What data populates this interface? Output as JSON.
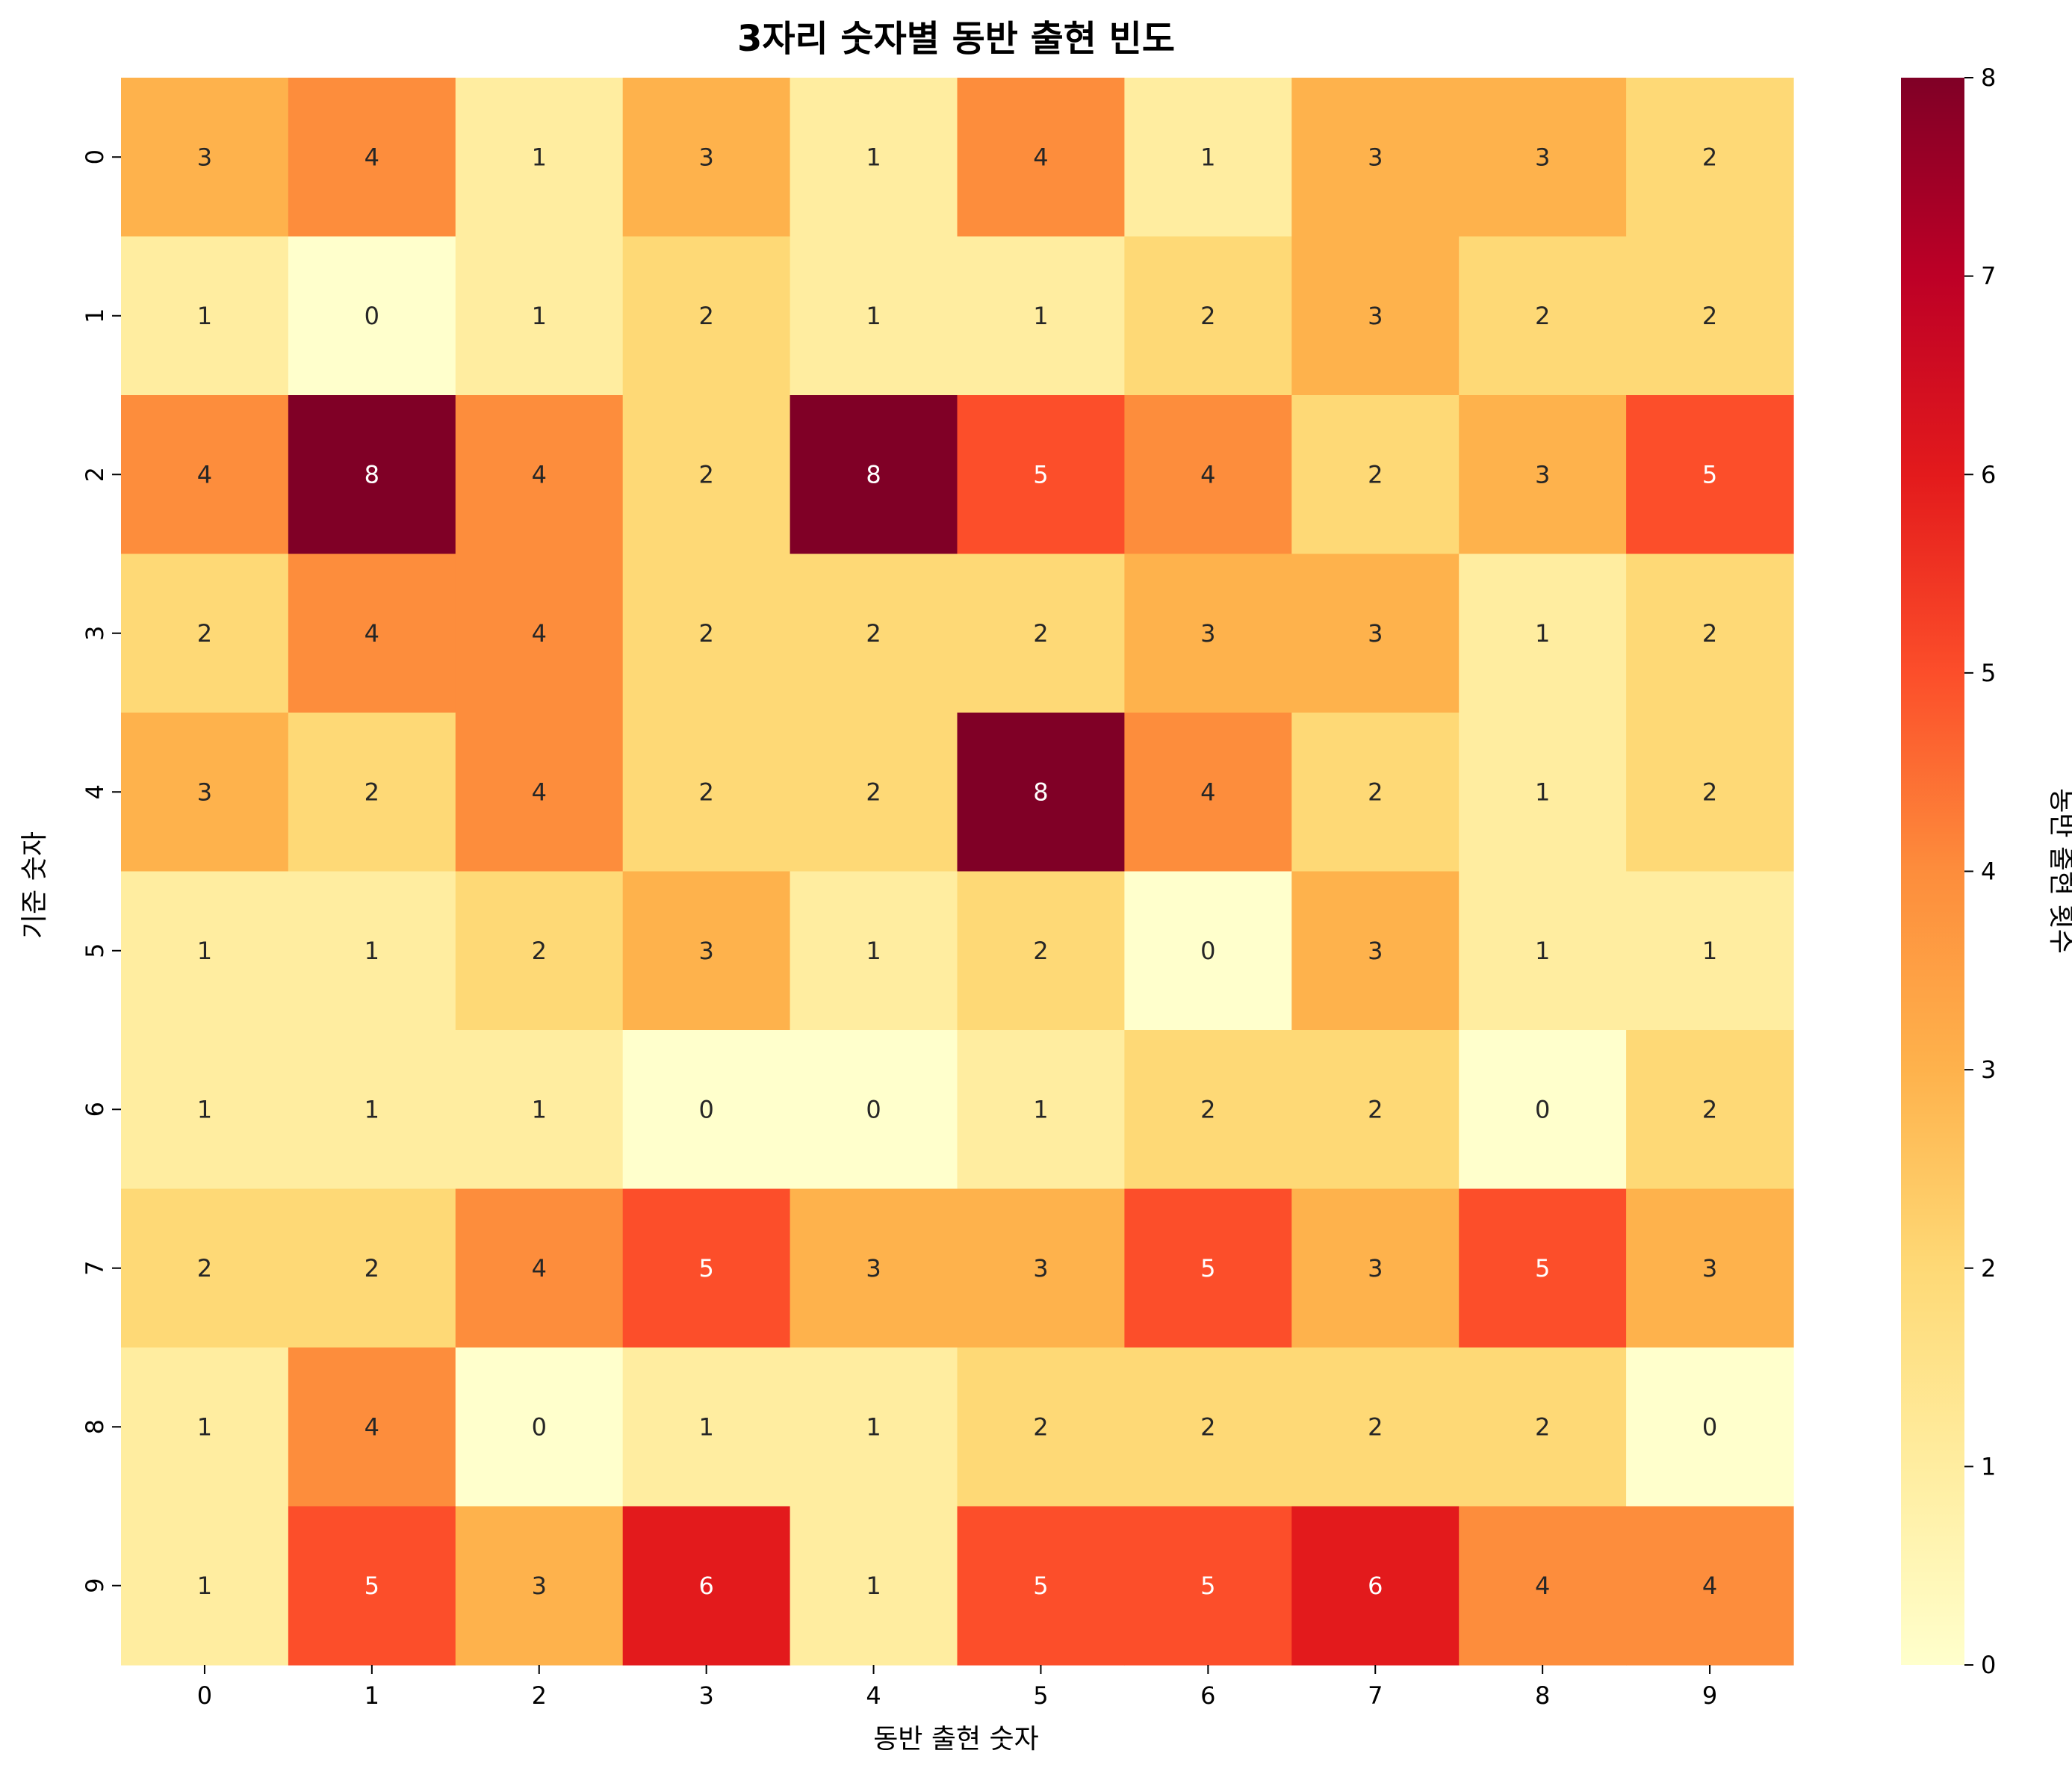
{
  "chart_data": {
    "type": "heatmap",
    "title": "3자리 숫자별 동반 출현 빈도",
    "xlabel": "동반 출현 숫자",
    "ylabel": "기준 숫자",
    "x_categories": [
      "0",
      "1",
      "2",
      "3",
      "4",
      "5",
      "6",
      "7",
      "8",
      "9"
    ],
    "y_categories": [
      "0",
      "1",
      "2",
      "3",
      "4",
      "5",
      "6",
      "7",
      "8",
      "9"
    ],
    "values": [
      [
        3,
        4,
        1,
        3,
        1,
        4,
        1,
        3,
        3,
        2
      ],
      [
        1,
        0,
        1,
        2,
        1,
        1,
        2,
        3,
        2,
        2
      ],
      [
        4,
        8,
        4,
        2,
        8,
        5,
        4,
        2,
        3,
        5
      ],
      [
        2,
        4,
        4,
        2,
        2,
        2,
        3,
        3,
        1,
        2
      ],
      [
        3,
        2,
        4,
        2,
        2,
        8,
        4,
        2,
        1,
        2
      ],
      [
        1,
        1,
        2,
        3,
        1,
        2,
        0,
        3,
        1,
        1
      ],
      [
        1,
        1,
        1,
        0,
        0,
        1,
        2,
        2,
        0,
        2
      ],
      [
        2,
        2,
        4,
        5,
        3,
        3,
        5,
        3,
        5,
        3
      ],
      [
        1,
        4,
        0,
        1,
        1,
        2,
        2,
        2,
        2,
        0
      ],
      [
        1,
        5,
        3,
        6,
        1,
        5,
        5,
        6,
        4,
        4
      ]
    ],
    "colorbar": {
      "label": "동반 출현 횟수",
      "range": [
        0,
        8
      ],
      "ticks": [
        "0",
        "1",
        "2",
        "3",
        "4",
        "5",
        "6",
        "7",
        "8"
      ],
      "colormap": "YlOrRd"
    }
  }
}
